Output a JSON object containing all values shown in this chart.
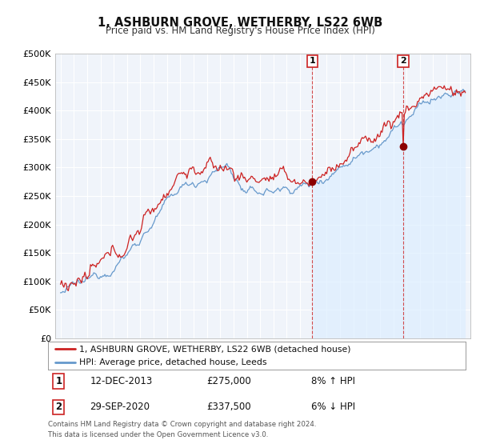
{
  "title": "1, ASHBURN GROVE, WETHERBY, LS22 6WB",
  "subtitle": "Price paid vs. HM Land Registry's House Price Index (HPI)",
  "ytick_labels": [
    "£0",
    "£50K",
    "£100K",
    "£150K",
    "£200K",
    "£250K",
    "£300K",
    "£350K",
    "£400K",
    "£450K",
    "£500K"
  ],
  "yticks": [
    0,
    50000,
    100000,
    150000,
    200000,
    250000,
    300000,
    350000,
    400000,
    450000,
    500000
  ],
  "line1_color": "#cc2222",
  "line2_color": "#6699cc",
  "line1_label": "1, ASHBURN GROVE, WETHERBY, LS22 6WB (detached house)",
  "line2_label": "HPI: Average price, detached house, Leeds",
  "annotation1_date": "12-DEC-2013",
  "annotation1_price": "£275,000",
  "annotation1_hpi": "8% ↑ HPI",
  "annotation2_date": "29-SEP-2020",
  "annotation2_price": "£337,500",
  "annotation2_hpi": "6% ↓ HPI",
  "footer": "Contains HM Land Registry data © Crown copyright and database right 2024.\nThis data is licensed under the Open Government Licence v3.0.",
  "background_color": "#ffffff",
  "plot_bg_color": "#f0f4fa",
  "grid_color": "#ffffff",
  "hpi_fill_color": "#ddeeff",
  "sale1_year": 2013.95,
  "sale1_price": 275000,
  "sale2_year": 2020.75,
  "sale2_price": 337500
}
